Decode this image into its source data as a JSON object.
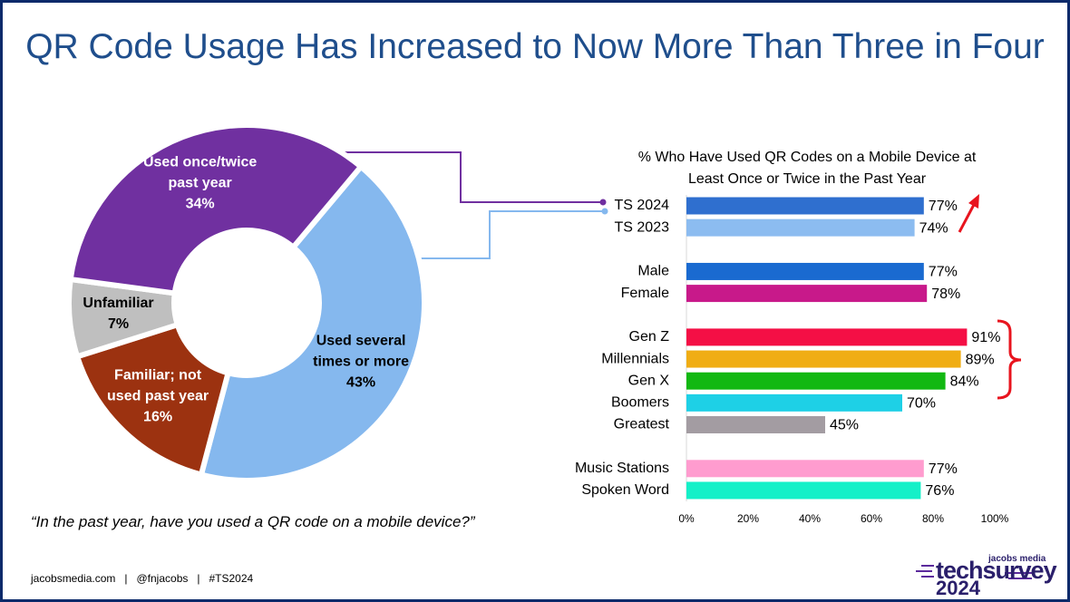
{
  "header": {
    "title": "QR Code Usage Has Increased to Now More Than Three in Four"
  },
  "chart_data": [
    {
      "type": "pie",
      "hole": true,
      "categories": [
        "Used several times or more",
        "Familiar; not used past year",
        "Unfamiliar",
        "Used once/twice past year"
      ],
      "values": [
        43,
        16,
        7,
        34
      ],
      "value_labels": [
        "43%",
        "16%",
        "7%",
        "34%"
      ],
      "colors": [
        "#85b8ee",
        "#9c3210",
        "#bfbfbf",
        "#7030a0"
      ]
    },
    {
      "type": "hbar",
      "title": "% Who Have Used QR Codes on a Mobile Device at Least Once or Twice in the Past Year",
      "categories": [
        "TS 2024",
        "TS 2023",
        null,
        "Male",
        "Female",
        null,
        "Gen Z",
        "Millennials",
        "Gen X",
        "Boomers",
        "Greatest",
        null,
        "Music Stations",
        "Spoken Word"
      ],
      "values": [
        77,
        74,
        null,
        77,
        78,
        null,
        91,
        89,
        84,
        70,
        45,
        null,
        77,
        76
      ],
      "value_labels": [
        "77%",
        "74%",
        null,
        "77%",
        "78%",
        null,
        "91%",
        "89%",
        "84%",
        "70%",
        "45%",
        null,
        "77%",
        "76%"
      ],
      "colors": [
        "#2f6fcf",
        "#8cbcf0",
        null,
        "#1a6ad0",
        "#c8198a",
        null,
        "#f40f45",
        "#f0ad14",
        "#12b812",
        "#1ed0e6",
        "#a39ca2",
        null,
        "#ff9ccf",
        "#14f0c8"
      ],
      "xlim": [
        0,
        100
      ],
      "xticks": [
        {
          "value": 0,
          "label": "0%"
        },
        {
          "value": 20,
          "label": "20%"
        },
        {
          "value": 40,
          "label": "40%"
        },
        {
          "value": 60,
          "label": "60%"
        },
        {
          "value": 80,
          "label": "80%"
        },
        {
          "value": 100,
          "label": "100%"
        }
      ]
    }
  ],
  "question": "“In the past year, have you used a QR code on a mobile device?”",
  "footer": "jacobsmedia.com   |   @fnjacobs   |   #TS2024",
  "logo": {
    "brand": "jacobs media",
    "name": "techsurvey",
    "year": "2024"
  }
}
